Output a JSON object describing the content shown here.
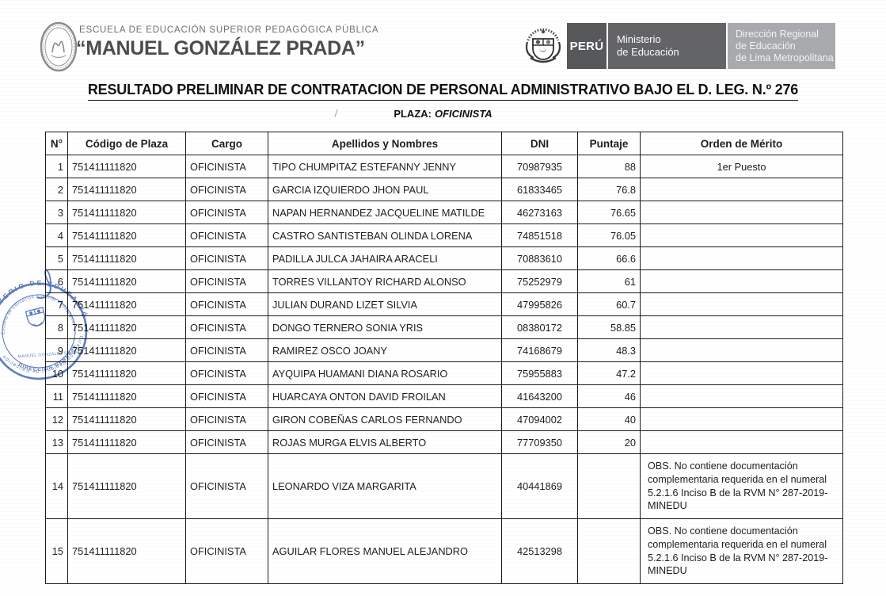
{
  "header": {
    "school": {
      "line1": "ESCUELA DE EDUCACIÓN SUPERIOR PEDAGÓGICA PÚBLICA",
      "name": "“MANUEL GONZÁLEZ PRADA”"
    },
    "gov": {
      "peru": "PERÚ",
      "ministry": "Ministerio\nde Educación",
      "regional": "Dirección Regional\nde Educación\nde Lima Metropolitana"
    }
  },
  "title": "RESULTADO PRELIMINAR DE CONTRATACION DE PERSONAL ADMINISTRATIVO BAJO EL D. LEG. N.º 276",
  "subtitle": {
    "label": "PLAZA:",
    "value": "OFICINISTA"
  },
  "table": {
    "columns": [
      "N°",
      "Código de Plaza",
      "Cargo",
      "Apellidos y Nombres",
      "DNI",
      "Puntaje",
      "Orden de Mérito"
    ],
    "rows": [
      {
        "n": "1",
        "codigo": "751411111820",
        "cargo": "OFICINISTA",
        "nombres": "TIPO CHUMPITAZ ESTEFANNY JENNY",
        "dni": "70987935",
        "puntaje": "88",
        "merito": "1er Puesto"
      },
      {
        "n": "2",
        "codigo": "751411111820",
        "cargo": "OFICINISTA",
        "nombres": "GARCIA IZQUIERDO JHON PAUL",
        "dni": "61833465",
        "puntaje": "76.8",
        "merito": ""
      },
      {
        "n": "3",
        "codigo": "751411111820",
        "cargo": "OFICINISTA",
        "nombres": "NAPAN HERNANDEZ JACQUELINE MATILDE",
        "dni": "46273163",
        "puntaje": "76.65",
        "merito": ""
      },
      {
        "n": "4",
        "codigo": "751411111820",
        "cargo": "OFICINISTA",
        "nombres": "CASTRO SANTISTEBAN OLINDA LORENA",
        "dni": "74851518",
        "puntaje": "76.05",
        "merito": ""
      },
      {
        "n": "5",
        "codigo": "751411111820",
        "cargo": "OFICINISTA",
        "nombres": "PADILLA JULCA JAHAIRA ARACELI",
        "dni": "70883610",
        "puntaje": "66.6",
        "merito": ""
      },
      {
        "n": "6",
        "codigo": "751411111820",
        "cargo": "OFICINISTA",
        "nombres": "TORRES VILLANTOY RICHARD ALONSO",
        "dni": "75252979",
        "puntaje": "61",
        "merito": ""
      },
      {
        "n": "7",
        "codigo": "751411111820",
        "cargo": "OFICINISTA",
        "nombres": "JULIAN DURAND LIZET SILVIA",
        "dni": "47995826",
        "puntaje": "60.7",
        "merito": ""
      },
      {
        "n": "8",
        "codigo": "751411111820",
        "cargo": "OFICINISTA",
        "nombres": "DONGO TERNERO SONIA YRIS",
        "dni": "08380172",
        "puntaje": "58.85",
        "merito": ""
      },
      {
        "n": "9",
        "codigo": "751411111820",
        "cargo": "OFICINISTA",
        "nombres": "RAMIREZ OSCO JOANY",
        "dni": "74168679",
        "puntaje": "48.3",
        "merito": ""
      },
      {
        "n": "10",
        "codigo": "751411111820",
        "cargo": "OFICINISTA",
        "nombres": "AYQUIPA HUAMANI DIANA ROSARIO",
        "dni": "75955883",
        "puntaje": "47.2",
        "merito": ""
      },
      {
        "n": "11",
        "codigo": "751411111820",
        "cargo": "OFICINISTA",
        "nombres": "HUARCAYA ONTON DAVID FROILAN",
        "dni": "41643200",
        "puntaje": "46",
        "merito": ""
      },
      {
        "n": "12",
        "codigo": "751411111820",
        "cargo": "OFICINISTA",
        "nombres": "GIRON COBEÑAS CARLOS FERNANDO",
        "dni": "47094002",
        "puntaje": "40",
        "merito": ""
      },
      {
        "n": "13",
        "codigo": "751411111820",
        "cargo": "OFICINISTA",
        "nombres": "ROJAS MURGA ELVIS ALBERTO",
        "dni": "77709350",
        "puntaje": "20",
        "merito": ""
      },
      {
        "n": "14",
        "codigo": "751411111820",
        "cargo": "OFICINISTA",
        "nombres": "LEONARDO VIZA MARGARITA",
        "dni": "40441869",
        "puntaje": "",
        "merito": "OBS. No contiene documentación complementaria requerida en el numeral 5.2.1.6 Inciso B de la RVM N° 287-2019-MINEDU"
      },
      {
        "n": "15",
        "codigo": "751411111820",
        "cargo": "OFICINISTA",
        "nombres": "AGUILAR FLORES MANUEL ALEJANDRO",
        "dni": "42513298",
        "puntaje": "",
        "merito": "OBS. No contiene documentación complementaria requerida en el numeral 5.2.1.6 Inciso B de la RVM N° 287-2019-MINEDU"
      }
    ]
  },
  "stamp": {
    "ring_top": "MINISTERIO DE EDUCACIÓN",
    "ring_bottom": "Dirección Regional de Educación",
    "inner_ring": "Escuela de Educación Superior Pedagógica",
    "inner_line1": "DIRECCIÓN GENERAL",
    "inner_line2": "MANUEL GONZÁLEZ PRADA",
    "color": "#3a60ae"
  },
  "colors": {
    "peru_box": "#57585a",
    "ministry_box": "#636466",
    "regional_box": "#a8aaad",
    "table_border": "#1b1b1b"
  }
}
